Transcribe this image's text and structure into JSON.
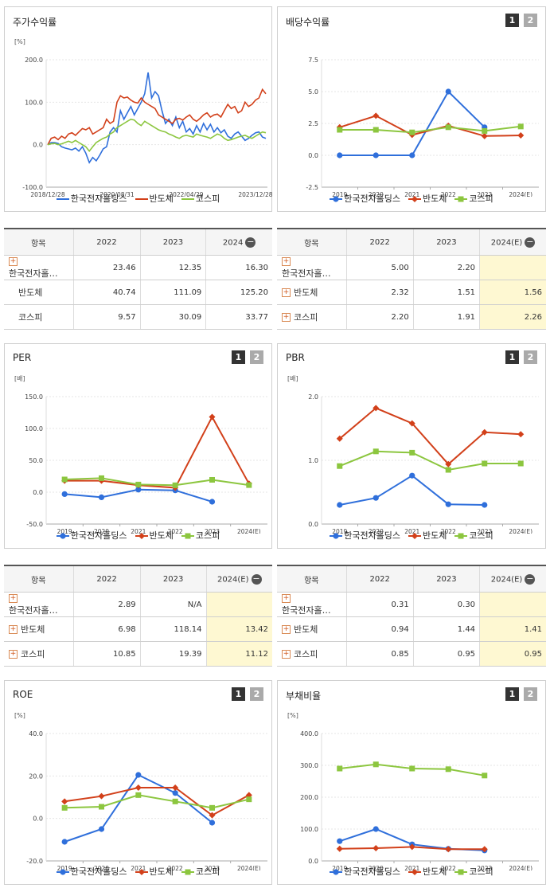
{
  "colors": {
    "company": "#2f6fdb",
    "semi": "#d2401a",
    "kospi": "#8cc63f"
  },
  "series_names": [
    "한국전자홀딩스",
    "반도체",
    "코스피"
  ],
  "panels": {
    "stock": {
      "title": "주가수익률",
      "unit": "[%]"
    },
    "div": {
      "title": "배당수익률"
    },
    "per": {
      "title": "PER",
      "unit": "[배]"
    },
    "pbr": {
      "title": "PBR",
      "unit": "[배]"
    },
    "roe": {
      "title": "ROE",
      "unit": "[%]"
    },
    "debt": {
      "title": "부채비율",
      "unit": "[%]"
    }
  },
  "buttons": [
    "1",
    "2"
  ],
  "tables": {
    "stock": {
      "header": [
        "항목",
        "2022",
        "2023",
        "2024"
      ],
      "rows": [
        {
          "name": "한국전자홀딩스",
          "plus": true,
          "values": [
            "23.46",
            "12.35",
            "16.30"
          ]
        },
        {
          "name": "반도체",
          "plus": false,
          "values": [
            "40.74",
            "111.09",
            "125.20"
          ]
        },
        {
          "name": "코스피",
          "plus": false,
          "values": [
            "9.57",
            "30.09",
            "33.77"
          ]
        }
      ]
    },
    "div": {
      "header": [
        "항목",
        "2022",
        "2023",
        "2024(E)"
      ],
      "rows": [
        {
          "name": "한국전자홀딩스",
          "plus": true,
          "values": [
            "5.00",
            "2.20",
            ""
          ]
        },
        {
          "name": "반도체",
          "plus": true,
          "values": [
            "2.32",
            "1.51",
            "1.56"
          ]
        },
        {
          "name": "코스피",
          "plus": true,
          "values": [
            "2.20",
            "1.91",
            "2.26"
          ]
        }
      ]
    },
    "per": {
      "header": [
        "항목",
        "2022",
        "2023",
        "2024(E)"
      ],
      "rows": [
        {
          "name": "한국전자홀딩스",
          "plus": true,
          "values": [
            "2.89",
            "N/A",
            ""
          ]
        },
        {
          "name": "반도체",
          "plus": true,
          "values": [
            "6.98",
            "118.14",
            "13.42"
          ]
        },
        {
          "name": "코스피",
          "plus": true,
          "values": [
            "10.85",
            "19.39",
            "11.12"
          ]
        }
      ]
    },
    "pbr": {
      "header": [
        "항목",
        "2022",
        "2023",
        "2024(E)"
      ],
      "rows": [
        {
          "name": "한국전자홀딩스",
          "plus": true,
          "values": [
            "0.31",
            "0.30",
            ""
          ]
        },
        {
          "name": "반도체",
          "plus": true,
          "values": [
            "0.94",
            "1.44",
            "1.41"
          ]
        },
        {
          "name": "코스피",
          "plus": true,
          "values": [
            "0.85",
            "0.95",
            "0.95"
          ]
        }
      ]
    }
  },
  "chart_data": [
    {
      "id": "stock",
      "type": "line",
      "title": "주가수익률",
      "ylabel": "[%]",
      "ylim": [
        -100,
        200
      ],
      "yticks": [
        "-100.0",
        "0.0",
        "100.0",
        "200.0"
      ],
      "xticks": [
        "2018/12/28",
        "2020/08/31",
        "2022/04/29",
        "2023/12/28"
      ],
      "x": [
        0,
        1,
        2,
        3,
        4,
        5,
        6,
        7,
        8,
        9,
        10,
        11,
        12,
        13,
        14,
        15,
        16,
        17,
        18,
        19,
        20,
        21,
        22,
        23,
        24,
        25,
        26,
        27,
        28,
        29,
        30,
        31,
        32,
        33,
        34,
        35,
        36,
        37,
        38,
        39,
        40,
        41,
        42,
        43,
        44,
        45,
        46,
        47,
        48,
        49,
        50,
        51,
        52,
        53,
        54,
        55,
        56,
        57,
        58,
        59,
        60,
        61,
        62,
        63
      ],
      "xtick_pos": [
        0,
        20,
        40,
        60
      ],
      "series": [
        {
          "name": "한국전자홀딩스",
          "values": [
            0,
            5,
            5,
            3,
            -5,
            -8,
            -10,
            -12,
            -8,
            -15,
            -5,
            -20,
            -42,
            -30,
            -38,
            -25,
            -10,
            -5,
            30,
            40,
            30,
            80,
            60,
            75,
            90,
            70,
            85,
            100,
            120,
            170,
            110,
            125,
            115,
            80,
            50,
            60,
            45,
            65,
            40,
            55,
            30,
            38,
            25,
            45,
            30,
            50,
            35,
            48,
            30,
            40,
            28,
            35,
            20,
            15,
            25,
            30,
            20,
            10,
            15,
            22,
            28,
            30,
            18,
            15
          ]
        },
        {
          "name": "반도체",
          "values": [
            0,
            15,
            18,
            12,
            20,
            15,
            25,
            28,
            22,
            30,
            38,
            35,
            40,
            25,
            30,
            35,
            40,
            60,
            50,
            55,
            100,
            115,
            110,
            112,
            105,
            100,
            98,
            110,
            100,
            95,
            90,
            85,
            70,
            65,
            60,
            55,
            50,
            60,
            62,
            58,
            65,
            70,
            60,
            55,
            62,
            70,
            75,
            65,
            70,
            72,
            65,
            80,
            95,
            85,
            90,
            75,
            80,
            100,
            90,
            95,
            105,
            110,
            130,
            120
          ]
        },
        {
          "name": "코스피",
          "values": [
            0,
            2,
            3,
            0,
            2,
            5,
            8,
            5,
            10,
            5,
            0,
            -5,
            -15,
            -5,
            5,
            10,
            15,
            18,
            25,
            30,
            40,
            45,
            50,
            55,
            60,
            58,
            50,
            45,
            55,
            50,
            45,
            40,
            35,
            32,
            30,
            25,
            22,
            18,
            15,
            20,
            22,
            20,
            18,
            25,
            22,
            20,
            18,
            15,
            20,
            25,
            22,
            15,
            10,
            12,
            15,
            18,
            20,
            22,
            18,
            15,
            20,
            25,
            30,
            28
          ]
        }
      ]
    },
    {
      "id": "div",
      "type": "line",
      "title": "배당수익률",
      "ylim": [
        -2.5,
        7.5
      ],
      "yticks": [
        "-2.5",
        "0.0",
        "2.5",
        "5.0",
        "7.5"
      ],
      "categories": [
        "2019",
        "2020",
        "2021",
        "2022",
        "2023",
        "2024(E)"
      ],
      "series": [
        {
          "name": "한국전자홀딩스",
          "values": [
            0,
            0,
            0,
            5.0,
            2.2,
            null
          ]
        },
        {
          "name": "반도체",
          "values": [
            2.2,
            3.1,
            1.6,
            2.32,
            1.51,
            1.56
          ]
        },
        {
          "name": "코스피",
          "values": [
            2.0,
            2.0,
            1.8,
            2.2,
            1.91,
            2.26
          ]
        }
      ]
    },
    {
      "id": "per",
      "type": "line",
      "title": "PER",
      "ylabel": "[배]",
      "ylim": [
        -50,
        150
      ],
      "yticks": [
        "-50.0",
        "0.0",
        "50.0",
        "100.0",
        "150.0"
      ],
      "categories": [
        "2019",
        "2020",
        "2021",
        "2022",
        "2023",
        "2024(E)"
      ],
      "series": [
        {
          "name": "한국전자홀딩스",
          "values": [
            -3,
            -8,
            4,
            2.89,
            -15,
            null
          ]
        },
        {
          "name": "반도체",
          "values": [
            18,
            18,
            11,
            6.98,
            118.14,
            13.42
          ]
        },
        {
          "name": "코스피",
          "values": [
            20,
            22,
            12,
            10.85,
            19.39,
            11.12
          ]
        }
      ]
    },
    {
      "id": "pbr",
      "type": "line",
      "title": "PBR",
      "ylabel": "[배]",
      "ylim": [
        0,
        2
      ],
      "yticks": [
        "0.0",
        "1.0",
        "2.0"
      ],
      "categories": [
        "2019",
        "2020",
        "2021",
        "2022",
        "2023",
        "2024(E)"
      ],
      "series": [
        {
          "name": "한국전자홀딩스",
          "values": [
            0.3,
            0.41,
            0.76,
            0.31,
            0.3,
            null
          ]
        },
        {
          "name": "반도체",
          "values": [
            1.34,
            1.82,
            1.58,
            0.94,
            1.44,
            1.41
          ]
        },
        {
          "name": "코스피",
          "values": [
            0.91,
            1.14,
            1.12,
            0.85,
            0.95,
            0.95
          ]
        }
      ]
    },
    {
      "id": "roe",
      "type": "line",
      "title": "ROE",
      "ylabel": "[%]",
      "ylim": [
        -20,
        40
      ],
      "yticks": [
        "-20.0",
        "0.0",
        "20.0",
        "40.0"
      ],
      "categories": [
        "2019",
        "2020",
        "2021",
        "2022",
        "2023",
        "2024(E)"
      ],
      "series": [
        {
          "name": "한국전자홀딩스",
          "values": [
            -11,
            -5,
            20.5,
            12,
            -2,
            null
          ]
        },
        {
          "name": "반도체",
          "values": [
            8,
            10.5,
            14.5,
            14.5,
            1.5,
            11
          ]
        },
        {
          "name": "코스피",
          "values": [
            5,
            5.5,
            11,
            8,
            5,
            9
          ]
        }
      ]
    },
    {
      "id": "debt",
      "type": "line",
      "title": "부채비율",
      "ylabel": "[%]",
      "ylim": [
        0,
        400
      ],
      "yticks": [
        "0.0",
        "100.0",
        "200.0",
        "300.0",
        "400.0"
      ],
      "categories": [
        "2019",
        "2020",
        "2021",
        "2022",
        "2023",
        "2024(E)"
      ],
      "series": [
        {
          "name": "한국전자홀딩스",
          "values": [
            62,
            100,
            52,
            38,
            33,
            null
          ]
        },
        {
          "name": "반도체",
          "values": [
            38,
            40,
            44,
            37,
            37,
            null
          ]
        },
        {
          "name": "코스피",
          "values": [
            290,
            303,
            290,
            288,
            268,
            null
          ]
        }
      ]
    }
  ]
}
